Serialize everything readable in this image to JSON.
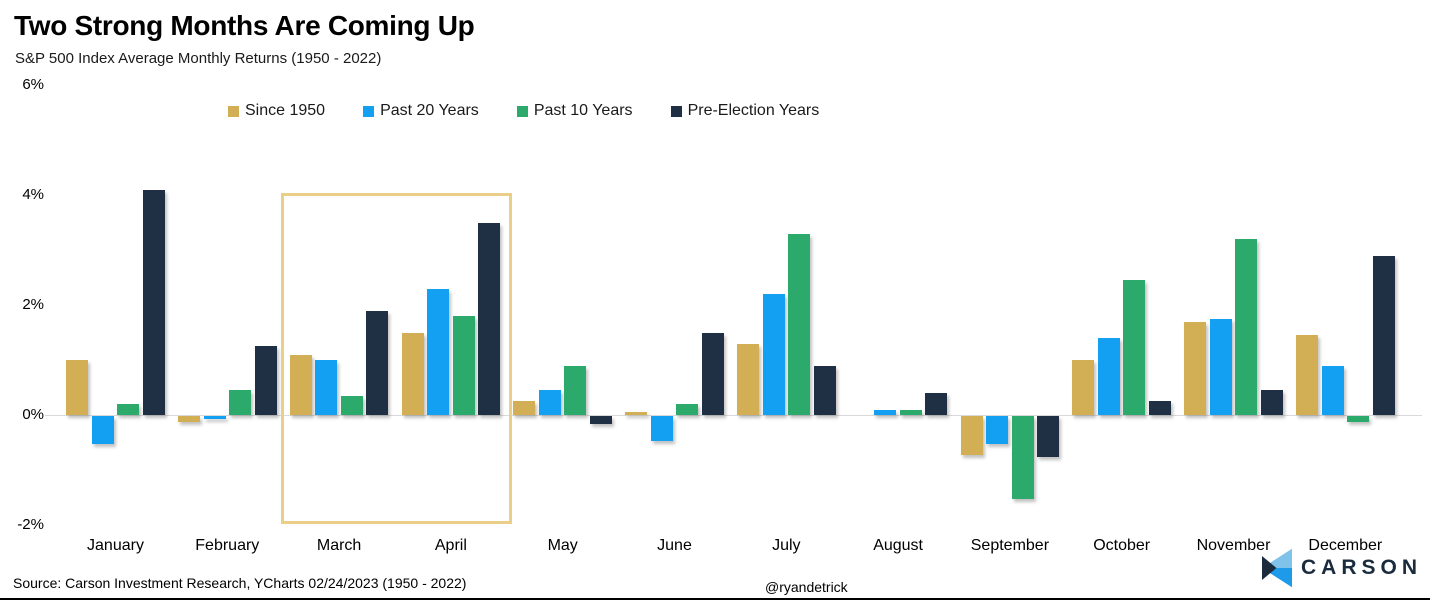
{
  "header": {
    "title": "Two Strong Months Are Coming Up",
    "subtitle": "S&P 500 Index Average Monthly Returns (1950 - 2022)"
  },
  "chart_data": {
    "type": "bar",
    "title": "Two Strong Months Are Coming Up",
    "subtitle": "S&P 500 Index Average Monthly Returns (1950 - 2022)",
    "unit": "%",
    "categories": [
      "January",
      "February",
      "March",
      "April",
      "May",
      "June",
      "July",
      "August",
      "September",
      "October",
      "November",
      "December"
    ],
    "series": [
      {
        "name": "Since 1950",
        "color": "#D2AE54",
        "values": [
          1.0,
          -0.1,
          1.1,
          1.5,
          0.25,
          0.05,
          1.3,
          0.0,
          -0.7,
          1.0,
          1.7,
          1.45
        ]
      },
      {
        "name": "Past 20 Years",
        "color": "#14A0F2",
        "values": [
          -0.5,
          -0.05,
          1.0,
          2.3,
          0.45,
          -0.45,
          2.2,
          0.1,
          -0.5,
          1.4,
          1.75,
          0.9
        ]
      },
      {
        "name": "Past 10 Years",
        "color": "#2BAA6B",
        "values": [
          0.2,
          0.45,
          0.35,
          1.8,
          0.9,
          0.2,
          3.3,
          0.1,
          -1.5,
          2.45,
          3.2,
          -0.1
        ]
      },
      {
        "name": "Pre-Election Years",
        "color": "#1F3044",
        "values": [
          4.1,
          1.25,
          1.9,
          3.5,
          -0.15,
          1.5,
          0.9,
          0.4,
          -0.75,
          0.25,
          0.45,
          2.9
        ]
      }
    ],
    "ylim": [
      -2,
      6
    ],
    "yticks": [
      {
        "value": 6,
        "label": "6%"
      },
      {
        "value": 4,
        "label": "4%"
      },
      {
        "value": 2,
        "label": "2%"
      },
      {
        "value": 0,
        "label": "0%"
      },
      {
        "value": -2,
        "label": "-2%"
      }
    ],
    "baseline_value": 0,
    "grid": false,
    "legend_position": "top",
    "highlight": {
      "from_category": "March",
      "to_category": "April",
      "border_color": "#E9CF87"
    }
  },
  "footer": {
    "source": "Source: Carson Investment Research, YCharts 02/24/2023 (1950 - 2022)",
    "handle": "@ryandetrick",
    "logo_text": "CARSON"
  },
  "colors": {
    "accent_gold": "#D2AE54",
    "accent_blue": "#14A0F2",
    "accent_green": "#2BAA6B",
    "accent_navy": "#1F3044",
    "highlight_border": "#E9CF87",
    "baseline_gray": "#D9D9D9",
    "logo_navy": "#1B2B3E",
    "logo_light_blue": "#7FC2EA",
    "logo_bright_blue": "#1D9AE8"
  }
}
